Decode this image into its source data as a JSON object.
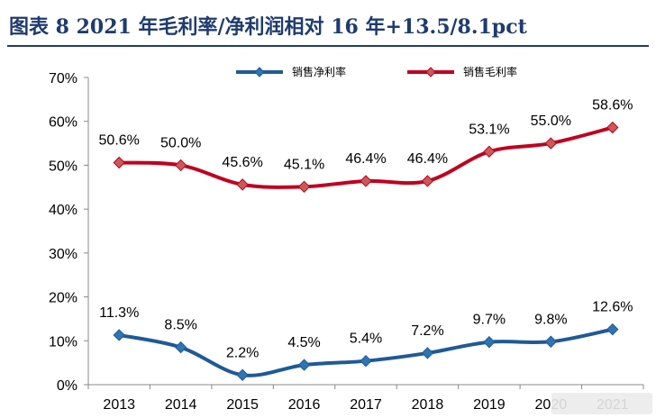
{
  "figure": {
    "title": "图表 8   2021 年毛利率/净利润相对 16 年+13.5/8.1pct"
  },
  "chart_data": {
    "type": "line",
    "categories": [
      "2013",
      "2014",
      "2015",
      "2016",
      "2017",
      "2018",
      "2019",
      "2020",
      "2021"
    ],
    "series": [
      {
        "name": "销售净利率",
        "values": [
          11.3,
          8.5,
          2.2,
          4.5,
          5.4,
          7.2,
          9.7,
          9.8,
          12.6
        ],
        "labels": [
          "11.3%",
          "8.5%",
          "2.2%",
          "4.5%",
          "5.4%",
          "7.2%",
          "9.7%",
          "9.8%",
          "12.6%"
        ],
        "color": "#1f5a96",
        "marker_color": "#2f74b5"
      },
      {
        "name": "销售毛利率",
        "values": [
          50.6,
          50.0,
          45.6,
          45.1,
          46.4,
          46.4,
          53.1,
          55.0,
          58.6
        ],
        "labels": [
          "50.6%",
          "50.0%",
          "45.6%",
          "45.1%",
          "46.4%",
          "46.4%",
          "53.1%",
          "55.0%",
          "58.6%"
        ],
        "color": "#c0001f",
        "marker_color": "#c95a5a"
      }
    ],
    "yticks": [
      "0%",
      "10%",
      "20%",
      "30%",
      "40%",
      "50%",
      "60%",
      "70%"
    ],
    "ylim": [
      0,
      70
    ],
    "grid": false,
    "legend_position": "top-center"
  }
}
